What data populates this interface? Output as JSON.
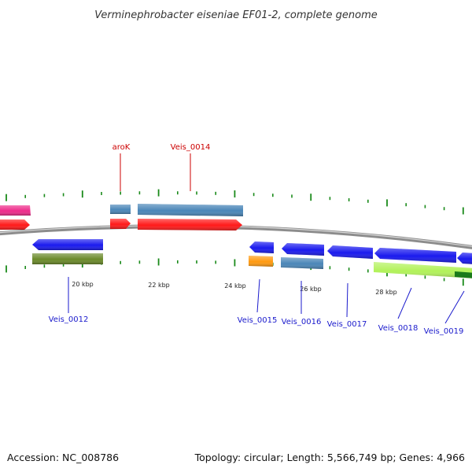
{
  "title": "Verminephrobacter eiseniae EF01-2, complete genome",
  "accession_text": "Accession: NC_008786",
  "summary_text": "Topology: circular; Length: 5,566,749 bp; Genes: 4,966",
  "colors": {
    "backbone": "#8c8c8c",
    "tick": "#1a8a1a",
    "label_top": "#cc0000",
    "label_bottom": "#1a1acc",
    "cds_red": "#ff1a1a",
    "cds_blue": "#1a1aee",
    "cds_steel": "#4a86b8",
    "cds_pink": "#ee2a8a",
    "cds_olive": "#6b8a2a",
    "cds_orange": "#ff9a10",
    "cds_lime": "#b2f25a",
    "cds_darkgreen": "#1a7a1a"
  },
  "scale_labels": [
    "20 kbp",
    "22 kbp",
    "24 kbp",
    "26 kbp",
    "28 kbp"
  ],
  "gene_labels_top": [
    "aroK",
    "Veis_0014"
  ],
  "gene_labels_bottom": [
    "Veis_0012",
    "Veis_0015",
    "Veis_0016",
    "Veis_0017",
    "Veis_0018",
    "Veis_0019"
  ]
}
